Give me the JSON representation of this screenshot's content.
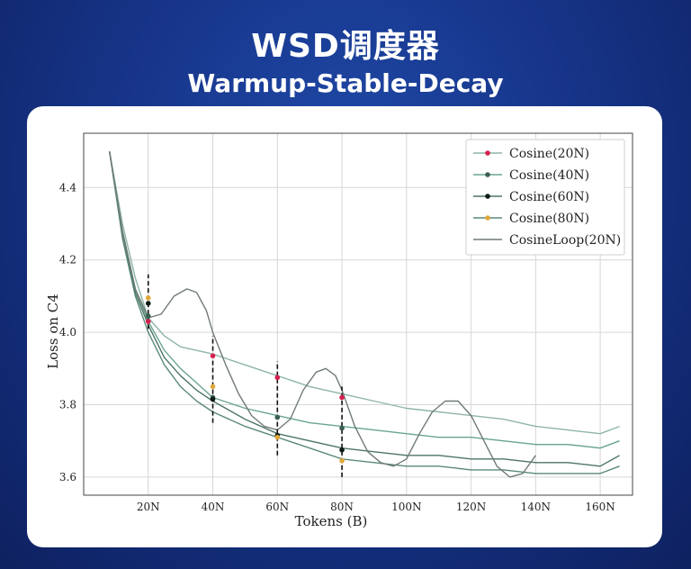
{
  "header": {
    "title": "WSD调度器",
    "subtitle": "Warmup-Stable-Decay"
  },
  "chart_data": {
    "type": "line",
    "xlabel": "Tokens (B)",
    "ylabel": "Loss on C4",
    "xlim": [
      0,
      170
    ],
    "ylim": [
      3.55,
      4.55
    ],
    "xticks": [
      {
        "value": 20,
        "label": "20N"
      },
      {
        "value": 40,
        "label": "40N"
      },
      {
        "value": 60,
        "label": "60N"
      },
      {
        "value": 80,
        "label": "80N"
      },
      {
        "value": 100,
        "label": "100N"
      },
      {
        "value": 120,
        "label": "120N"
      },
      {
        "value": 140,
        "label": "140N"
      },
      {
        "value": 160,
        "label": "160N"
      }
    ],
    "yticks": [
      {
        "value": 3.6,
        "label": "3.6"
      },
      {
        "value": 3.8,
        "label": "3.8"
      },
      {
        "value": 4.0,
        "label": "4.0"
      },
      {
        "value": 4.2,
        "label": "4.2"
      },
      {
        "value": 4.4,
        "label": "4.4"
      }
    ],
    "grid": true,
    "legend_position": "top-right",
    "series": [
      {
        "name": "Cosine(20N)",
        "color": "#8fb6a5",
        "marker_color": "#d62050",
        "x": [
          8,
          12,
          16,
          20,
          25,
          30,
          35,
          40,
          50,
          60,
          70,
          80,
          90,
          100,
          110,
          120,
          130,
          140,
          150,
          160,
          166
        ],
        "y": [
          4.5,
          4.3,
          4.15,
          4.04,
          3.99,
          3.96,
          3.95,
          3.94,
          3.91,
          3.88,
          3.85,
          3.83,
          3.81,
          3.79,
          3.78,
          3.77,
          3.76,
          3.74,
          3.73,
          3.72,
          3.74
        ],
        "markers": [
          {
            "x": 20,
            "y": 4.03
          },
          {
            "x": 40,
            "y": 3.935
          },
          {
            "x": 60,
            "y": 3.875
          },
          {
            "x": 80,
            "y": 3.82
          }
        ]
      },
      {
        "name": "Cosine(40N)",
        "color": "#6aa58e",
        "marker_color": "#3a5f50",
        "x": [
          8,
          12,
          16,
          20,
          25,
          30,
          35,
          40,
          50,
          60,
          70,
          80,
          90,
          100,
          110,
          120,
          130,
          140,
          150,
          160,
          166
        ],
        "y": [
          4.5,
          4.28,
          4.12,
          4.03,
          3.95,
          3.9,
          3.86,
          3.82,
          3.79,
          3.77,
          3.75,
          3.74,
          3.73,
          3.72,
          3.71,
          3.71,
          3.7,
          3.69,
          3.69,
          3.68,
          3.7
        ],
        "markers": [
          {
            "x": 20,
            "y": 4.045
          },
          {
            "x": 40,
            "y": 3.82
          },
          {
            "x": 60,
            "y": 3.765
          },
          {
            "x": 80,
            "y": 3.735
          }
        ]
      },
      {
        "name": "Cosine(60N)",
        "color": "#4d7565",
        "marker_color": "#0d1a14",
        "x": [
          8,
          12,
          16,
          20,
          25,
          30,
          35,
          40,
          50,
          60,
          70,
          80,
          90,
          100,
          110,
          120,
          130,
          140,
          150,
          160,
          166
        ],
        "y": [
          4.5,
          4.27,
          4.11,
          4.02,
          3.93,
          3.88,
          3.84,
          3.81,
          3.76,
          3.72,
          3.7,
          3.68,
          3.67,
          3.66,
          3.66,
          3.65,
          3.65,
          3.64,
          3.64,
          3.63,
          3.66
        ],
        "markers": [
          {
            "x": 20,
            "y": 4.08
          },
          {
            "x": 40,
            "y": 3.815
          },
          {
            "x": 60,
            "y": 3.715
          },
          {
            "x": 80,
            "y": 3.675
          }
        ]
      },
      {
        "name": "Cosine(80N)",
        "color": "#5a8a78",
        "marker_color": "#e0a83c",
        "x": [
          8,
          12,
          16,
          20,
          25,
          30,
          35,
          40,
          50,
          60,
          70,
          80,
          90,
          100,
          110,
          120,
          130,
          140,
          150,
          160,
          166
        ],
        "y": [
          4.5,
          4.26,
          4.1,
          4.0,
          3.91,
          3.85,
          3.81,
          3.78,
          3.74,
          3.71,
          3.68,
          3.65,
          3.64,
          3.63,
          3.63,
          3.62,
          3.62,
          3.61,
          3.61,
          3.61,
          3.63
        ],
        "markers": [
          {
            "x": 20,
            "y": 4.095
          },
          {
            "x": 40,
            "y": 3.85
          },
          {
            "x": 60,
            "y": 3.71
          },
          {
            "x": 80,
            "y": 3.645
          }
        ]
      },
      {
        "name": "CosineLoop(20N)",
        "color": "#707a76",
        "marker_color": "",
        "x": [
          8,
          12,
          16,
          20,
          24,
          28,
          32,
          35,
          38,
          40,
          44,
          48,
          52,
          56,
          60,
          64,
          68,
          72,
          75,
          78,
          80,
          84,
          88,
          92,
          96,
          100,
          104,
          108,
          112,
          116,
          120,
          124,
          128,
          132,
          136,
          140
        ],
        "y": [
          4.5,
          4.28,
          4.12,
          4.04,
          4.05,
          4.1,
          4.12,
          4.11,
          4.06,
          4.0,
          3.91,
          3.83,
          3.77,
          3.74,
          3.73,
          3.76,
          3.84,
          3.89,
          3.9,
          3.88,
          3.84,
          3.74,
          3.67,
          3.64,
          3.63,
          3.65,
          3.72,
          3.78,
          3.81,
          3.81,
          3.77,
          3.7,
          3.63,
          3.6,
          3.61,
          3.66
        ],
        "markers": []
      }
    ],
    "vlines": [
      {
        "x": 20,
        "y_from": 4.01,
        "y_to": 4.16
      },
      {
        "x": 40,
        "y_from": 3.75,
        "y_to": 3.99
      },
      {
        "x": 60,
        "y_from": 3.66,
        "y_to": 3.92
      },
      {
        "x": 80,
        "y_from": 3.6,
        "y_to": 3.85
      }
    ]
  }
}
